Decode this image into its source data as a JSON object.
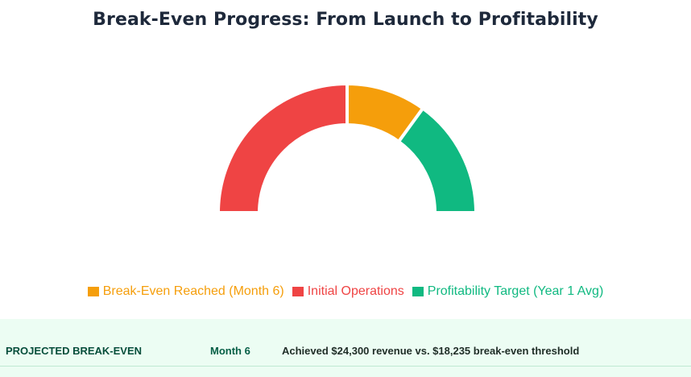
{
  "title": "Break-Even Progress: From Launch to Profitability",
  "chart_data": {
    "type": "pie",
    "variant": "half-doughnut",
    "series": [
      {
        "name": "Initial Operations",
        "value": 50,
        "color": "#ef4444"
      },
      {
        "name": "Break-Even Reached (Month 6)",
        "value": 20,
        "color": "#f59e0b"
      },
      {
        "name": "Profitability Target (Year 1 Avg)",
        "value": 30,
        "color": "#10b981"
      }
    ],
    "legend": [
      {
        "label": "Break-Even Reached (Month 6)",
        "color": "#f59e0b"
      },
      {
        "label": "Initial Operations",
        "color": "#ef4444"
      },
      {
        "label": "Profitability Target (Year 1 Avg)",
        "color": "#10b981"
      }
    ],
    "legend_position": "bottom"
  },
  "summary": {
    "label": "PROJECTED BREAK-EVEN",
    "value": "Month 6",
    "description": "Achieved $24,300 revenue vs. $18,235 break-even threshold"
  }
}
